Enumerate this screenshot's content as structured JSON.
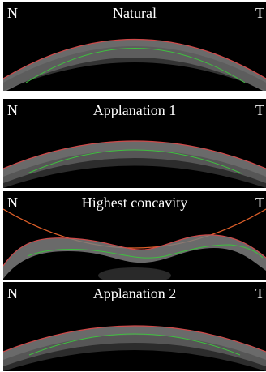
{
  "panels": [
    {
      "left_label": "N",
      "title": "Natural",
      "right_label": "T"
    },
    {
      "left_label": "N",
      "title": "Applanation 1",
      "right_label": "T"
    },
    {
      "left_label": "N",
      "title": "Highest concavity",
      "right_label": "T"
    },
    {
      "left_label": "N",
      "title": "Applanation 2",
      "right_label": "T"
    }
  ],
  "colors": {
    "background": "#000000",
    "cornea": "#8a8a8a",
    "anterior_edge": "#d04a4a",
    "posterior_edge": "#3fbf3f",
    "air_puff_edge": "#e0602a"
  }
}
